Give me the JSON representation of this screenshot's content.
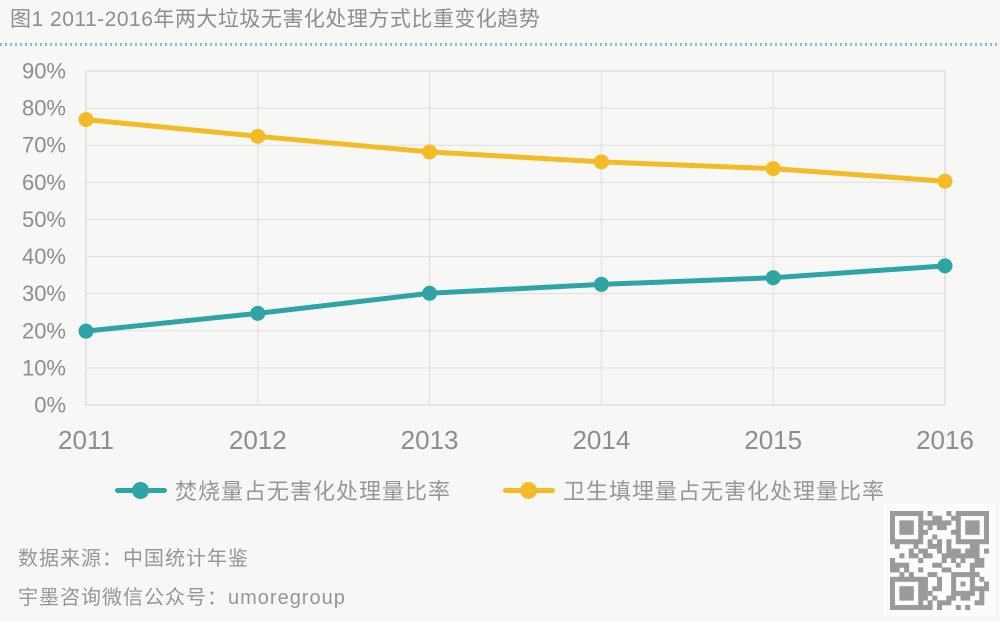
{
  "header": {
    "title": "图1 2011-2016年两大垃圾无害化处理方式比重变化趋势"
  },
  "footer": {
    "source": "数据来源：中国统计年鉴",
    "wechat": "宇墨咨询微信公众号：umoregroup"
  },
  "colors": {
    "incineration": "#2fa4a4",
    "landfill": "#f3bc26",
    "text_gray": "#8d8d8d",
    "text_gray_light": "#969696",
    "grid": "#dedede",
    "separator": "#7fcabc",
    "background": "#f7f7f6",
    "qr": "#9a9a9a"
  },
  "chart_data": {
    "type": "line",
    "title": "图1 2011-2016年两大垃圾无害化处理方式比重变化趋势",
    "x": [
      2011,
      2012,
      2013,
      2014,
      2015,
      2016
    ],
    "x_tick_labels": [
      "2011",
      "2012",
      "2013",
      "2014",
      "2015",
      "2016"
    ],
    "series": [
      {
        "name": "焚烧量占无害化处理量比率",
        "color_key": "incineration",
        "values": [
          19.9,
          24.7,
          30.1,
          32.5,
          34.3,
          37.5
        ]
      },
      {
        "name": "卫生填埋量占无害化处理量比率",
        "color_key": "landfill",
        "values": [
          76.9,
          72.4,
          68.2,
          65.5,
          63.7,
          60.3
        ]
      }
    ],
    "ylim": [
      0,
      90
    ],
    "y_tick_step": 10,
    "y_tick_suffix": "%",
    "y_tick_labels": [
      "0%",
      "10%",
      "20%",
      "30%",
      "40%",
      "50%",
      "60%",
      "70%",
      "80%",
      "90%"
    ],
    "grid": true,
    "legend_position": "bottom",
    "marker": "circle"
  }
}
